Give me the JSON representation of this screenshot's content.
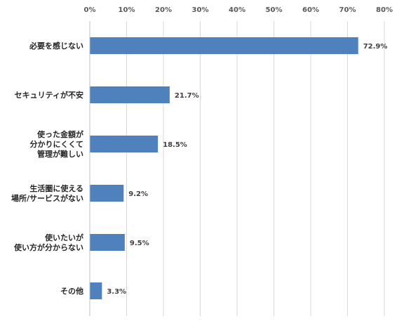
{
  "chart_data": {
    "type": "bar",
    "orientation": "horizontal",
    "categories": [
      "必要を感じない",
      "セキュリティが不安",
      "使った金額が\n分かりにくくて\n管理が難しい",
      "生活圏に使える\n場所/サービスがない",
      "使いたいが\n使い方が分からない",
      "その他"
    ],
    "values": [
      72.9,
      21.7,
      18.5,
      9.2,
      9.5,
      3.3
    ],
    "data_labels": [
      "72.9%",
      "21.7%",
      "18.5%",
      "9.2%",
      "9.5%",
      "3.3%"
    ],
    "x_ticks": [
      "0%",
      "10%",
      "20%",
      "30%",
      "40%",
      "50%",
      "60%",
      "70%",
      "80%"
    ],
    "xlim": [
      0,
      80
    ],
    "x_axis_position": "top",
    "grid": true,
    "bar_color": "#4f81bd",
    "title": "",
    "xlabel": "",
    "ylabel": ""
  }
}
